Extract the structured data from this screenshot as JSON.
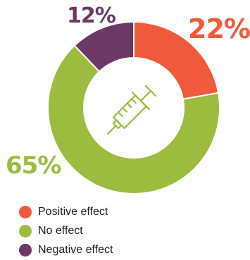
{
  "chart_data": {
    "type": "pie",
    "donut": true,
    "categories": [
      "Positive effect",
      "No effect",
      "Negative effect"
    ],
    "values": [
      22,
      65,
      12
    ],
    "labels": [
      "22%",
      "65%",
      "12%"
    ],
    "colors": [
      "#f05a3c",
      "#9cbc40",
      "#6c3865"
    ],
    "legend_position": "bottom-left",
    "center_icon": "syringe-icon"
  }
}
